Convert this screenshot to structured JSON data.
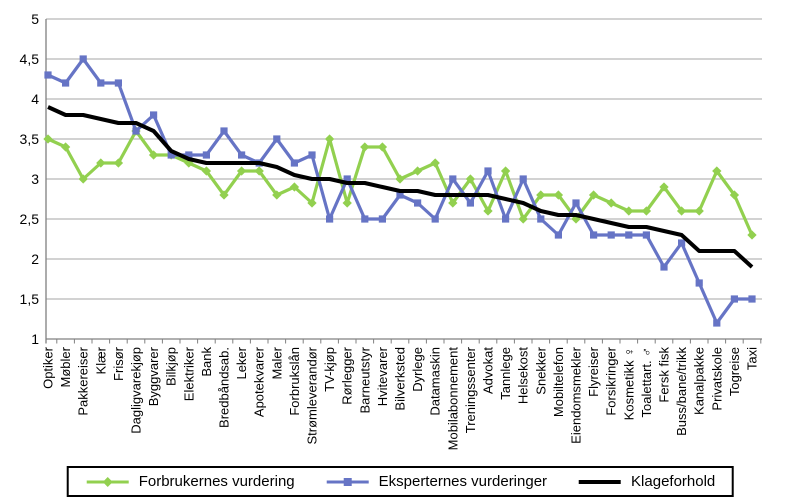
{
  "page": {
    "background": "#FFFFFF"
  },
  "chart_data": {
    "type": "line",
    "title": "",
    "xlabel": "",
    "ylabel": "",
    "ylim": [
      1,
      5
    ],
    "ytick_step": 0.5,
    "ytick_labels": [
      "1",
      "1,5",
      "2",
      "2,5",
      "3",
      "3,5",
      "4",
      "4,5",
      "5"
    ],
    "grid": true,
    "legend_position": "bottom",
    "style": {
      "grid_color": "#A6A6A6",
      "axis_color": "#808080",
      "text_color": "#000000"
    },
    "categories": [
      "Optiker",
      "Møbler",
      "Pakkereiser",
      "Klær",
      "Frisør",
      "Dagligvarekjøp",
      "Byggvarer",
      "Bilkjøp",
      "Elektriker",
      "Bank",
      "Bredbåndsab.",
      "Leker",
      "Apotekvarer",
      "Maler",
      "Forbrukslån",
      "Strømleverandør",
      "TV-kjøp",
      "Rørlegger",
      "Barneutstyr",
      "Hvitevarer",
      "Bilverksted",
      "Dyrlege",
      "Datamaskin",
      "Mobilabonnement",
      "Treningssenter",
      "Advokat",
      "Tannlege",
      "Helsekost",
      "Snekker",
      "Mobiltelefon",
      "Eiendomsmekler",
      "Flyreiser",
      "Forsikringer",
      "Kosmetikk ♀",
      "Toalettart. ♂",
      "Fersk fisk",
      "Buss/bane/trikk",
      "Kanalpakke",
      "Privatskole",
      "Togreise",
      "Taxi"
    ],
    "series": [
      {
        "name": "Forbrukernes vurdering",
        "color": "#92D04F",
        "marker": "diamond",
        "line_width": 3.2,
        "values": [
          3.5,
          3.4,
          3.0,
          3.2,
          3.2,
          3.6,
          3.3,
          3.3,
          3.2,
          3.1,
          2.8,
          3.1,
          3.1,
          2.8,
          2.9,
          2.7,
          3.5,
          2.7,
          3.4,
          3.4,
          3.0,
          3.1,
          3.2,
          2.7,
          3.0,
          2.6,
          3.1,
          2.5,
          2.8,
          2.8,
          2.5,
          2.8,
          2.7,
          2.6,
          2.6,
          2.9,
          2.6,
          2.6,
          3.1,
          2.8,
          2.3
        ]
      },
      {
        "name": "Eksperternes vurderinger",
        "color": "#6674C5",
        "marker": "square",
        "line_width": 3.2,
        "values": [
          4.3,
          4.2,
          4.5,
          4.2,
          4.2,
          3.6,
          3.8,
          3.3,
          3.3,
          3.3,
          3.6,
          3.3,
          3.2,
          3.5,
          3.2,
          3.3,
          2.5,
          3.0,
          2.5,
          2.5,
          2.8,
          2.7,
          2.5,
          3.0,
          2.7,
          3.1,
          2.5,
          3.0,
          2.5,
          2.3,
          2.7,
          2.3,
          2.3,
          2.3,
          2.3,
          1.9,
          2.2,
          1.7,
          1.2,
          1.5,
          1.5
        ]
      },
      {
        "name": "Klageforhold",
        "color": "#000000",
        "marker": "none",
        "line_width": 4,
        "values": [
          3.9,
          3.8,
          3.8,
          3.75,
          3.7,
          3.7,
          3.6,
          3.35,
          3.25,
          3.2,
          3.2,
          3.2,
          3.2,
          3.15,
          3.05,
          3.0,
          3.0,
          2.95,
          2.95,
          2.9,
          2.85,
          2.85,
          2.8,
          2.8,
          2.8,
          2.8,
          2.75,
          2.7,
          2.6,
          2.55,
          2.55,
          2.5,
          2.45,
          2.4,
          2.4,
          2.35,
          2.3,
          2.1,
          2.1,
          2.1,
          1.9
        ]
      }
    ]
  }
}
